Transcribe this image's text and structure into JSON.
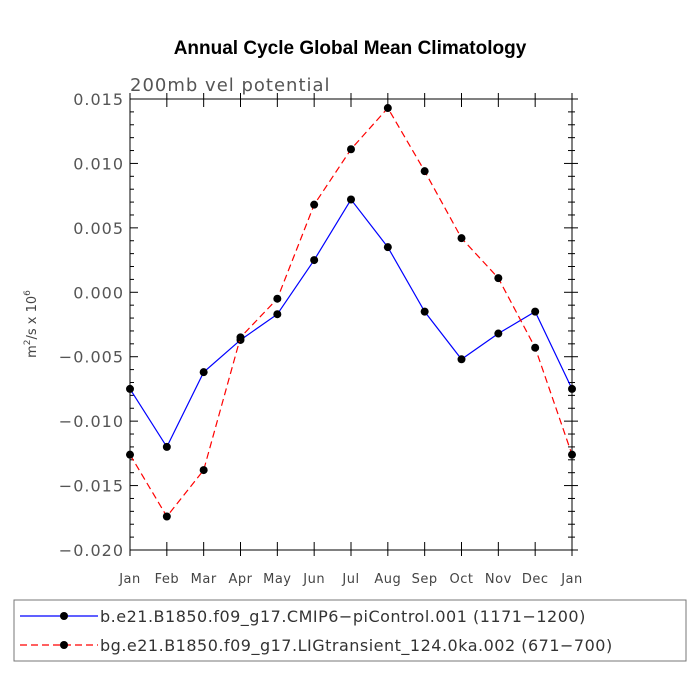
{
  "chart_data": {
    "type": "line",
    "title": "Annual Cycle Global Mean Climatology",
    "subtitle": "200mb vel potential",
    "ylabel_base": "m",
    "ylabel_sup1": "2",
    "ylabel_mid": "/s x 10",
    "ylabel_sup2": "6",
    "categories": [
      "Jan",
      "Feb",
      "Mar",
      "Apr",
      "May",
      "Jun",
      "Jul",
      "Aug",
      "Sep",
      "Oct",
      "Nov",
      "Dec",
      "Jan"
    ],
    "ylim": [
      -0.02,
      0.015
    ],
    "yticks": [
      -0.02,
      -0.015,
      -0.01,
      -0.005,
      0.0,
      0.005,
      0.01,
      0.015
    ],
    "ytick_labels": [
      "−0.020",
      "−0.015",
      "−0.010",
      "−0.005",
      "0.000",
      "0.005",
      "0.010",
      "0.015"
    ],
    "grid": false,
    "legend_position": "bottom",
    "series": [
      {
        "name": "b.e21.B1850.f09_g17.CMIP6−piControl.001 (1171−1200)",
        "color": "#0000ff",
        "dash": "solid",
        "values": [
          -0.0075,
          -0.012,
          -0.0062,
          -0.0037,
          -0.0017,
          0.0025,
          0.0072,
          0.0035,
          -0.0015,
          -0.0052,
          -0.0032,
          -0.0015,
          -0.0075
        ]
      },
      {
        "name": "bg.e21.B1850.f09_g17.LIGtransient_124.0ka.002 (671−700)",
        "color": "#ff0000",
        "dash": "dashed",
        "values": [
          -0.0126,
          -0.0174,
          -0.0138,
          -0.0035,
          -0.0005,
          0.0068,
          0.0111,
          0.0143,
          0.0094,
          0.0042,
          0.0011,
          -0.0043,
          -0.0126
        ]
      }
    ]
  }
}
